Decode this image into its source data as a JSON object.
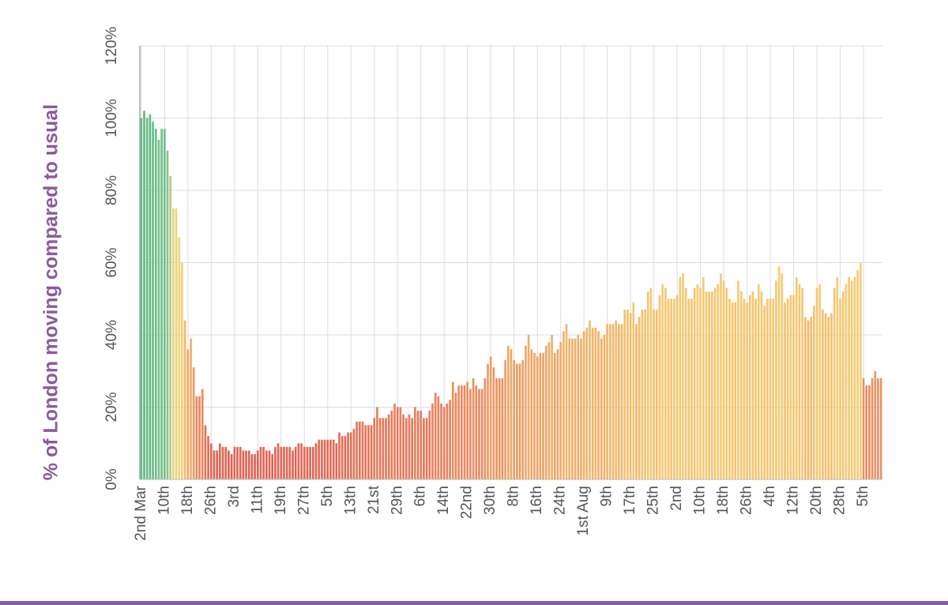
{
  "chart_data": {
    "type": "bar",
    "y_label": "% of London moving compared to usual",
    "categories": [
      "2nd Mar",
      null,
      null,
      null,
      null,
      null,
      null,
      null,
      "10th",
      null,
      null,
      null,
      null,
      null,
      null,
      null,
      "18th",
      null,
      null,
      null,
      null,
      null,
      null,
      null,
      "26th",
      null,
      null,
      null,
      null,
      null,
      null,
      null,
      "3rd",
      null,
      null,
      null,
      null,
      null,
      null,
      null,
      "11th",
      null,
      null,
      null,
      null,
      null,
      null,
      null,
      "19th",
      null,
      null,
      null,
      null,
      null,
      null,
      null,
      "27th",
      null,
      null,
      null,
      null,
      null,
      null,
      null,
      "5th",
      null,
      null,
      null,
      null,
      null,
      null,
      null,
      "13th",
      null,
      null,
      null,
      null,
      null,
      null,
      null,
      "21st",
      null,
      null,
      null,
      null,
      null,
      null,
      null,
      "29th",
      null,
      null,
      null,
      null,
      null,
      null,
      null,
      "6th",
      null,
      null,
      null,
      null,
      null,
      null,
      null,
      "14th",
      null,
      null,
      null,
      null,
      null,
      null,
      null,
      "22nd",
      null,
      null,
      null,
      null,
      null,
      null,
      null,
      "30th",
      null,
      null,
      null,
      null,
      null,
      null,
      null,
      "8th",
      null,
      null,
      null,
      null,
      null,
      null,
      null,
      "16th",
      null,
      null,
      null,
      null,
      null,
      null,
      null,
      "24th",
      null,
      null,
      null,
      null,
      null,
      null,
      null,
      "1st Aug",
      null,
      null,
      null,
      null,
      null,
      null,
      null,
      "9th",
      null,
      null,
      null,
      null,
      null,
      null,
      null,
      "17th",
      null,
      null,
      null,
      null,
      null,
      null,
      null,
      "25th",
      null,
      null,
      null,
      null,
      null,
      null,
      null,
      "2nd",
      null,
      null,
      null,
      null,
      null,
      null,
      null,
      "10th",
      null,
      null,
      null,
      null,
      null,
      null,
      null,
      "18th",
      null,
      null,
      null,
      null,
      null,
      null,
      null,
      "26th",
      null,
      null,
      null,
      null,
      null,
      null,
      null,
      "4th",
      null,
      null,
      null,
      null,
      null,
      null,
      null,
      "12th",
      null,
      null,
      null,
      null,
      null,
      null,
      null,
      "20th",
      null,
      null,
      null,
      null,
      null,
      null,
      null,
      "28th",
      null,
      null,
      null,
      null,
      null,
      null,
      null,
      "5th",
      null,
      null,
      null,
      null,
      null,
      null
    ],
    "values": [
      100,
      102,
      100,
      101,
      99,
      97,
      94,
      97,
      97,
      91,
      84,
      75,
      75,
      67,
      60,
      44,
      36,
      39,
      31,
      23,
      23,
      25,
      15,
      12,
      10,
      8,
      8,
      10,
      9,
      9,
      8,
      7,
      9,
      9,
      9,
      8,
      8,
      8,
      7,
      7,
      8,
      9,
      9,
      8,
      8,
      7,
      9,
      10,
      9,
      9,
      9,
      9,
      8,
      9,
      10,
      10,
      9,
      9,
      9,
      9,
      10,
      11,
      11,
      11,
      11,
      11,
      11,
      10,
      13,
      12,
      12,
      13,
      13,
      14,
      16,
      16,
      16,
      15,
      15,
      15,
      17,
      20,
      17,
      17,
      17,
      18,
      19,
      21,
      20,
      20,
      18,
      17,
      18,
      17,
      20,
      19,
      19,
      17,
      17,
      19,
      21,
      24,
      23,
      21,
      20,
      21,
      22,
      27,
      24,
      26,
      26,
      26,
      27,
      25,
      28,
      26,
      25,
      25,
      28,
      32,
      34,
      31,
      28,
      28,
      28,
      33,
      37,
      36,
      33,
      32,
      32,
      33,
      37,
      40,
      36,
      35,
      34,
      35,
      35,
      37,
      38,
      40,
      35,
      36,
      38,
      41,
      43,
      39,
      39,
      39,
      40,
      39,
      41,
      42,
      44,
      42,
      42,
      41,
      39,
      40,
      43,
      43,
      43,
      44,
      43,
      43,
      47,
      47,
      46,
      49,
      43,
      45,
      47,
      47,
      52,
      53,
      47,
      47,
      51,
      54,
      53,
      50,
      50,
      50,
      51,
      56,
      57,
      53,
      50,
      50,
      53,
      54,
      53,
      56,
      52,
      52,
      52,
      53,
      54,
      57,
      55,
      53,
      50,
      49,
      49,
      55,
      52,
      50,
      49,
      51,
      52,
      50,
      54,
      52,
      48,
      50,
      50,
      50,
      55,
      59,
      57,
      49,
      50,
      51,
      51,
      56,
      54,
      53,
      45,
      44,
      45,
      48,
      53,
      54,
      47,
      46,
      45,
      46,
      53,
      56,
      50,
      52,
      54,
      56,
      55,
      56,
      58,
      60,
      28,
      26,
      26,
      28,
      30,
      28,
      28
    ],
    "color_scale": [
      "#d9544f",
      "#e8875f",
      "#f3c46e",
      "#f6d77d",
      "#6fbf8a",
      "#3fa57a"
    ],
    "ylim": [
      0,
      120
    ],
    "yticks": [
      {
        "value": 0,
        "label": "0%"
      },
      {
        "value": 20,
        "label": "20%"
      },
      {
        "value": 40,
        "label": "40%"
      },
      {
        "value": 60,
        "label": "60%"
      },
      {
        "value": 80,
        "label": "80%"
      },
      {
        "value": 100,
        "label": "100%"
      },
      {
        "value": 120,
        "label": "120%"
      }
    ],
    "grid": true
  }
}
